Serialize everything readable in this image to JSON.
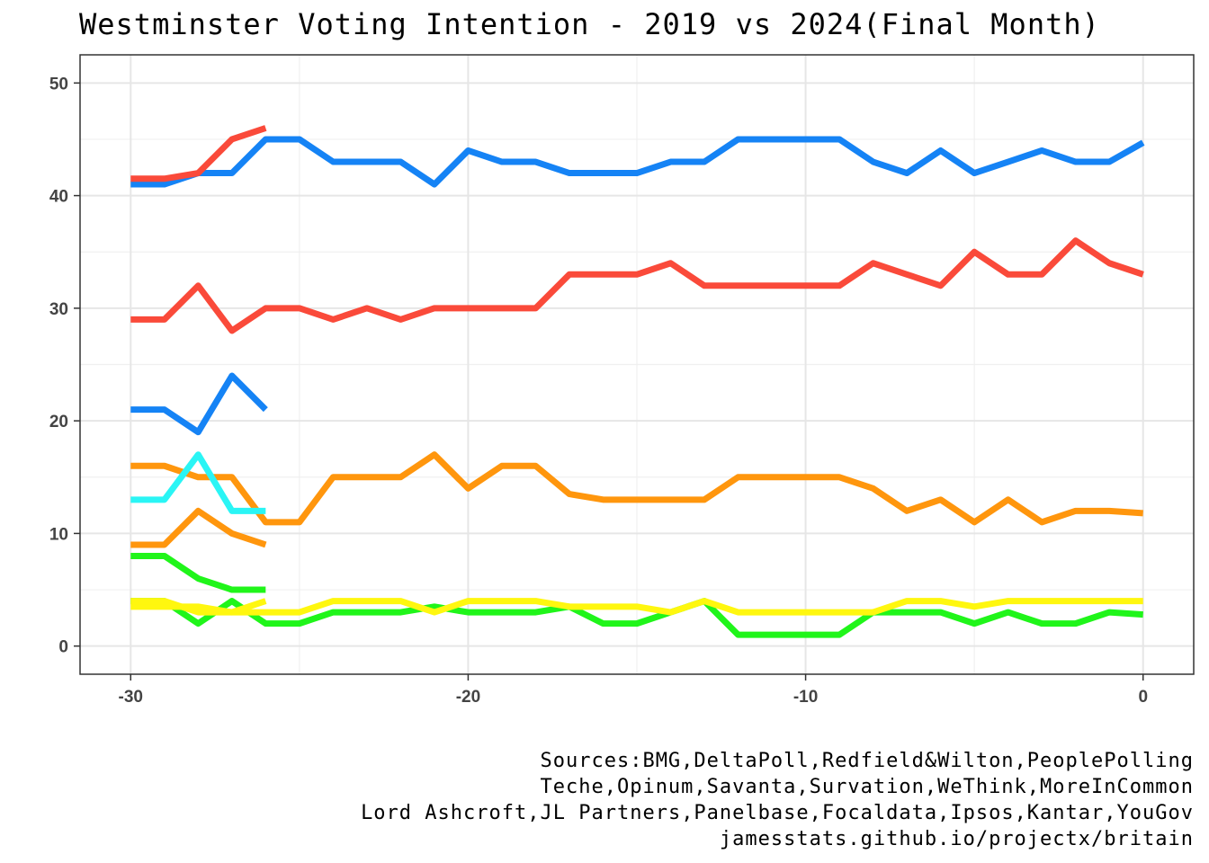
{
  "chart_data": {
    "type": "line",
    "title": "Westminster Voting Intention - 2019 vs 2024(Final Month)",
    "xlabel": "",
    "ylabel": "",
    "xlim": [
      -31.5,
      1.5
    ],
    "ylim": [
      -2.5,
      52.5
    ],
    "x_ticks": [
      -30,
      -20,
      -10,
      0
    ],
    "y_ticks": [
      0,
      10,
      20,
      30,
      40,
      50
    ],
    "grid": true,
    "legend": "none",
    "caption": [
      "Sources:BMG,DeltaPoll,Redfield&Wilton,PeoplePolling",
      "Teche,Opinum,Savanta,Survation,WeThink,MoreInCommon",
      "Lord Ashcroft,JL Partners,Panelbase,Focaldata,Ipsos,Kantar,YouGov",
      "jamesstats.github.io/projectx/britain"
    ],
    "series": [
      {
        "color": "#1583f5",
        "x": [
          -30,
          -29,
          -28,
          -27,
          -26,
          -25,
          -24,
          -23,
          -22,
          -21,
          -20,
          -19,
          -18,
          -17,
          -16,
          -15,
          -14,
          -13,
          -12,
          -11,
          -10,
          -9,
          -8,
          -7,
          -6,
          -5,
          -4,
          -3,
          -2,
          -1,
          0
        ],
        "y": [
          41,
          41,
          42,
          42,
          45,
          45,
          43,
          43,
          43,
          41,
          44,
          43,
          43,
          42,
          42,
          42,
          43,
          43,
          45,
          45,
          45,
          45,
          43,
          42,
          44,
          42,
          43,
          44,
          43,
          43,
          44.7
        ]
      },
      {
        "color": "#fa4a3a",
        "x": [
          -30,
          -29,
          -28,
          -27,
          -26
        ],
        "y": [
          41.5,
          41.5,
          42,
          45,
          46
        ]
      },
      {
        "color": "#fa4a3a",
        "x": [
          -30,
          -29,
          -28,
          -27,
          -26,
          -25,
          -24,
          -23,
          -22,
          -21,
          -20,
          -19,
          -18,
          -17,
          -16,
          -15,
          -14,
          -13,
          -12,
          -11,
          -10,
          -9,
          -8,
          -7,
          -6,
          -5,
          -4,
          -3,
          -2,
          -1,
          0
        ],
        "y": [
          29,
          29,
          32,
          28,
          30,
          30,
          29,
          30,
          29,
          30,
          30,
          30,
          30,
          33,
          33,
          33,
          34,
          32,
          32,
          32,
          32,
          32,
          34,
          33,
          32,
          35,
          33,
          33,
          36,
          34,
          33
        ]
      },
      {
        "color": "#1583f5",
        "x": [
          -30,
          -29,
          -28,
          -27,
          -26
        ],
        "y": [
          21,
          21,
          19,
          24,
          21
        ]
      },
      {
        "color": "#ff960d",
        "x": [
          -30,
          -29,
          -28,
          -27,
          -26,
          -25,
          -24,
          -23,
          -22,
          -21,
          -20,
          -19,
          -18,
          -17,
          -16,
          -15,
          -14,
          -13,
          -12,
          -11,
          -10,
          -9,
          -8,
          -7,
          -6,
          -5,
          -4,
          -3,
          -2,
          -1,
          0
        ],
        "y": [
          16,
          16,
          15,
          15,
          11,
          11,
          15,
          15,
          15,
          17,
          14,
          16,
          16,
          13.5,
          13,
          13,
          13,
          13,
          15,
          15,
          15,
          15,
          14,
          12,
          13,
          11,
          13,
          11,
          12,
          12,
          11.8
        ]
      },
      {
        "color": "#ff960d",
        "x": [
          -30,
          -29,
          -28,
          -27,
          -26
        ],
        "y": [
          9,
          9,
          12,
          10,
          9
        ]
      },
      {
        "color": "#2af5f5",
        "x": [
          -30,
          -29,
          -28,
          -27,
          -26
        ],
        "y": [
          13,
          13,
          17,
          12,
          12
        ]
      },
      {
        "color": "#20f51a",
        "x": [
          -30,
          -29,
          -28,
          -27,
          -26
        ],
        "y": [
          8,
          8,
          6,
          5,
          5
        ]
      },
      {
        "color": "#20f51a",
        "x": [
          -30,
          -29,
          -28,
          -27,
          -26,
          -25,
          -24,
          -23,
          -22,
          -21,
          -20,
          -19,
          -18,
          -17,
          -16,
          -15,
          -14,
          -13,
          -12,
          -11,
          -10,
          -9,
          -8,
          -7,
          -6,
          -5,
          -4,
          -3,
          -2,
          -1,
          0
        ],
        "y": [
          4,
          4,
          2,
          4,
          2,
          2,
          3,
          3,
          3,
          3.5,
          3,
          3,
          3,
          3.5,
          2,
          2,
          3,
          4,
          1,
          1,
          1,
          1,
          3,
          3,
          3,
          2,
          3,
          2,
          2,
          3,
          2.8
        ]
      },
      {
        "color": "#fff70f",
        "x": [
          -30,
          -29,
          -28,
          -27,
          -26
        ],
        "y": [
          3.5,
          3.5,
          3.5,
          3,
          4
        ]
      },
      {
        "color": "#fff70f",
        "x": [
          -30,
          -29,
          -28,
          -27,
          -26,
          -25,
          -24,
          -23,
          -22,
          -21,
          -20,
          -19,
          -18,
          -17,
          -16,
          -15,
          -14,
          -13,
          -12,
          -11,
          -10,
          -9,
          -8,
          -7,
          -6,
          -5,
          -4,
          -3,
          -2,
          -1,
          0
        ],
        "y": [
          4,
          4,
          3,
          3,
          3,
          3,
          4,
          4,
          4,
          3,
          4,
          4,
          4,
          3.5,
          3.5,
          3.5,
          3,
          4,
          3,
          3,
          3,
          3,
          3,
          4,
          4,
          3.5,
          4,
          4,
          4,
          4,
          4
        ]
      }
    ]
  }
}
